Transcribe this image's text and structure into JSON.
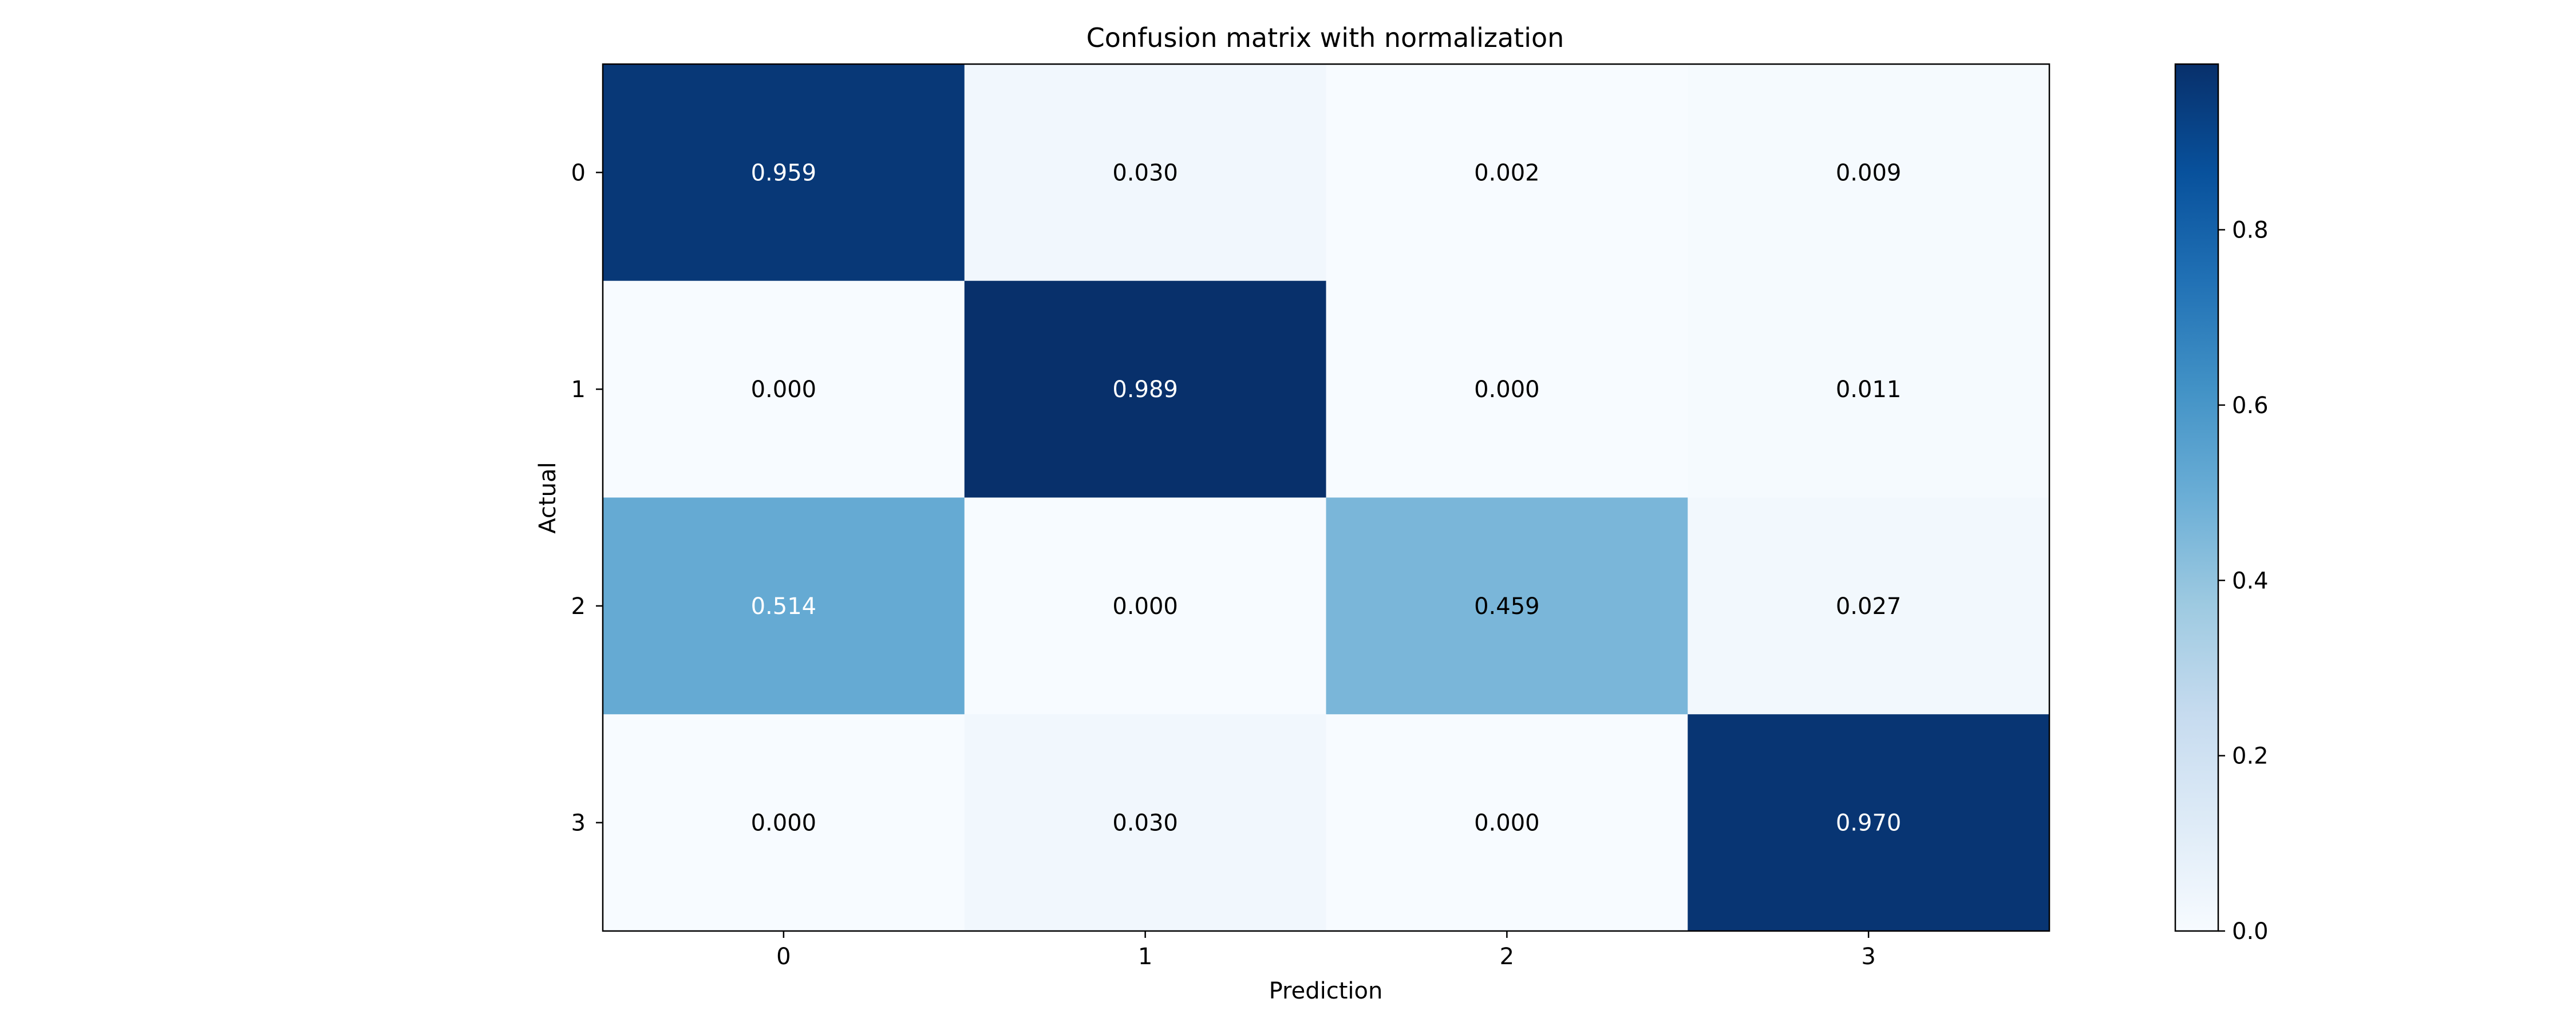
{
  "chart_data": {
    "type": "heatmap",
    "title": "Confusion matrix with normalization",
    "xlabel": "Prediction",
    "ylabel": "Actual",
    "x_categories": [
      "0",
      "1",
      "2",
      "3"
    ],
    "y_categories": [
      "0",
      "1",
      "2",
      "3"
    ],
    "values": [
      [
        0.959,
        0.03,
        0.002,
        0.009
      ],
      [
        0.0,
        0.989,
        0.0,
        0.011
      ],
      [
        0.514,
        0.0,
        0.459,
        0.027
      ],
      [
        0.0,
        0.03,
        0.0,
        0.97
      ]
    ],
    "cell_labels": [
      [
        "0.959",
        "0.030",
        "0.002",
        "0.009"
      ],
      [
        "0.000",
        "0.989",
        "0.000",
        "0.011"
      ],
      [
        "0.514",
        "0.000",
        "0.459",
        "0.027"
      ],
      [
        "0.000",
        "0.030",
        "0.000",
        "0.970"
      ]
    ],
    "colormap": "Blues",
    "color_range": [
      0,
      0.989
    ],
    "colorbar": {
      "ticks": [
        0.0,
        0.2,
        0.4,
        0.6,
        0.8
      ],
      "tick_labels": [
        "0.0",
        "0.2",
        "0.4",
        "0.6",
        "0.8"
      ]
    },
    "text_colors": {
      "dark": "#000000",
      "light": "#ffffff"
    }
  }
}
